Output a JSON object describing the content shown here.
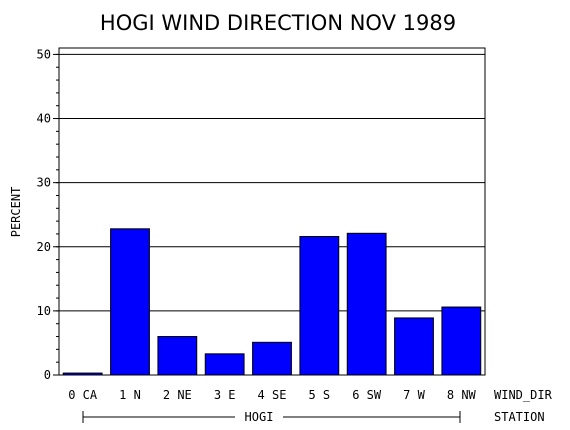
{
  "chart_data": {
    "type": "bar",
    "title": "HOGI WIND DIRECTION NOV 1989",
    "ylabel": "PERCENT",
    "ylim": [
      0,
      51
    ],
    "yticks": [
      0,
      10,
      20,
      30,
      40,
      50
    ],
    "grid": true,
    "categories": [
      "0 CA",
      "1 N",
      "2 NE",
      "3 E",
      "4 SE",
      "5 S",
      "6 SW",
      "7 W",
      "8 NW"
    ],
    "values": [
      0.3,
      22.8,
      6.0,
      3.3,
      5.1,
      21.6,
      22.1,
      8.9,
      10.6
    ],
    "bar_color": "#0000ff",
    "category_axis_label": "WIND_DIR",
    "group_label": "HOGI",
    "group_axis_label": "STATION"
  }
}
